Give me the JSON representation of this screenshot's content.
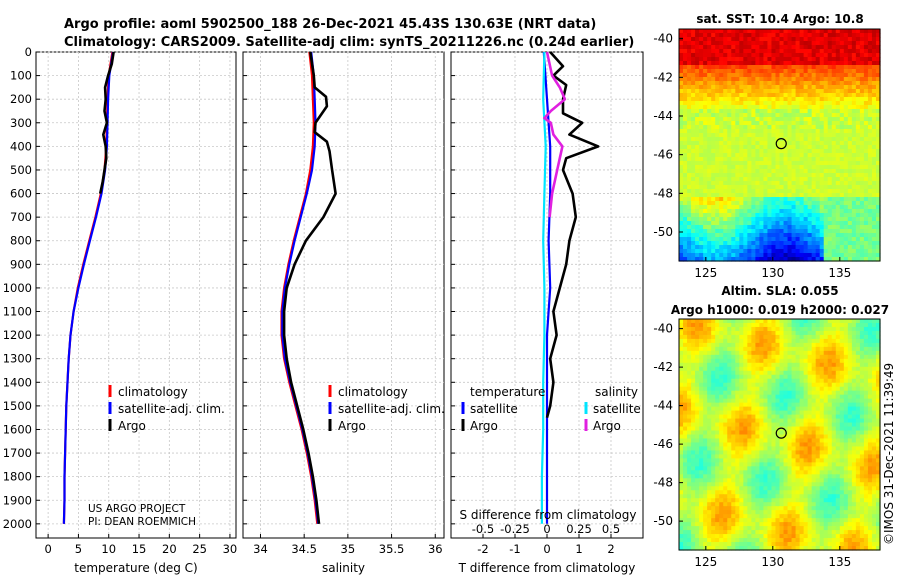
{
  "title_line1": "Argo profile: aoml 5902500_188 26-Dec-2021 45.43S 130.63E (NRT data)",
  "title_line2": "Climatology: CARS2009. Satellite-adj clim: synTS_20211226.nc (0.24d earlier)",
  "credit_line1": "US ARGO PROJECT",
  "credit_line2": "PI: DEAN ROEMMICH",
  "watermark": "©IMOS 31-Dec-2021 11:39:49",
  "colors": {
    "climatology": "#ff0000",
    "satellite": "#0000ff",
    "argo": "#000000",
    "sat_salinity": "#00e5ff",
    "argo_salinity": "#e020e0"
  },
  "chart_data": [
    {
      "type": "line",
      "title": "",
      "xlabel": "temperature (deg C)",
      "ylabel": "",
      "xlim": [
        -2,
        31
      ],
      "ylim": [
        2060,
        0
      ],
      "xticks": [
        "0",
        "5",
        "10",
        "15",
        "20",
        "25",
        "30"
      ],
      "yticks": [
        "0",
        "100",
        "200",
        "300",
        "400",
        "500",
        "600",
        "700",
        "800",
        "900",
        "1000",
        "1100",
        "1200",
        "1300",
        "1400",
        "1500",
        "1600",
        "1700",
        "1800",
        "1900",
        "2000"
      ],
      "legend": [
        "climatology",
        "satellite-adj. clim.",
        "Argo"
      ],
      "series": [
        {
          "name": "climatology",
          "depth": [
            0,
            100,
            200,
            300,
            400,
            500,
            600,
            700,
            800,
            900,
            1000,
            1100,
            1200,
            1300,
            1400,
            1500,
            1600,
            1700,
            1800,
            1900,
            2000
          ],
          "values": [
            10.6,
            10.0,
            9.8,
            9.7,
            9.6,
            9.3,
            8.7,
            7.8,
            6.8,
            5.8,
            4.9,
            4.2,
            3.7,
            3.4,
            3.2,
            3.0,
            2.9,
            2.8,
            2.7,
            2.7,
            2.6
          ]
        },
        {
          "name": "satellite-adj. clim.",
          "depth": [
            0,
            100,
            200,
            300,
            400,
            500,
            600,
            700,
            800,
            900,
            1000,
            1100,
            1200,
            1300,
            1400,
            1500,
            1600,
            1700,
            1800,
            1900,
            2000
          ],
          "values": [
            10.7,
            10.1,
            9.9,
            9.8,
            9.7,
            9.4,
            8.8,
            7.9,
            6.9,
            5.9,
            5.0,
            4.2,
            3.7,
            3.4,
            3.2,
            3.0,
            2.9,
            2.8,
            2.7,
            2.7,
            2.6
          ]
        },
        {
          "name": "Argo",
          "depth": [
            0,
            50,
            100,
            150,
            200,
            250,
            300,
            350,
            400,
            450,
            500,
            550,
            600
          ],
          "values": [
            10.8,
            10.5,
            9.9,
            9.4,
            9.5,
            9.3,
            9.7,
            9.1,
            9.5,
            9.6,
            9.3,
            9.0,
            8.6
          ]
        }
      ]
    },
    {
      "type": "line",
      "title": "",
      "xlabel": "salinity",
      "ylabel": "",
      "xlim": [
        33.8,
        36.1
      ],
      "ylim": [
        2060,
        0
      ],
      "xticks": [
        "34",
        "34.5",
        "35",
        "35.5",
        "36"
      ],
      "legend": [
        "climatology",
        "satellite-adj. clim.",
        "Argo"
      ],
      "series": [
        {
          "name": "climatology",
          "depth": [
            0,
            100,
            200,
            300,
            400,
            500,
            600,
            700,
            800,
            900,
            1000,
            1100,
            1200,
            1300,
            1400,
            1500,
            1600,
            1700,
            1800,
            1900,
            2000
          ],
          "values": [
            34.56,
            34.59,
            34.6,
            34.61,
            34.6,
            34.57,
            34.52,
            34.45,
            34.38,
            34.32,
            34.27,
            34.24,
            34.24,
            34.27,
            34.33,
            34.4,
            34.47,
            34.53,
            34.58,
            34.62,
            34.65
          ]
        },
        {
          "name": "satellite-adj. clim.",
          "depth": [
            0,
            100,
            200,
            300,
            400,
            500,
            600,
            700,
            800,
            900,
            1000,
            1100,
            1200,
            1300,
            1400,
            1500,
            1600,
            1700,
            1800,
            1900,
            2000
          ],
          "values": [
            34.58,
            34.61,
            34.62,
            34.63,
            34.62,
            34.59,
            34.53,
            34.46,
            34.39,
            34.33,
            34.28,
            34.25,
            34.25,
            34.28,
            34.34,
            34.41,
            34.48,
            34.54,
            34.59,
            34.63,
            34.66
          ]
        },
        {
          "name": "Argo",
          "depth": [
            0,
            100,
            150,
            190,
            230,
            300,
            340,
            380,
            420,
            500,
            600,
            700,
            800,
            900,
            1000,
            1100,
            1200,
            1300,
            1400,
            1500,
            1600,
            1700,
            1800,
            1900,
            2000
          ],
          "values": [
            34.57,
            34.61,
            34.62,
            34.75,
            34.76,
            34.63,
            34.62,
            34.76,
            34.79,
            34.82,
            34.86,
            34.72,
            34.52,
            34.39,
            34.3,
            34.27,
            34.27,
            34.3,
            34.35,
            34.42,
            34.49,
            34.55,
            34.6,
            34.64,
            34.67
          ]
        }
      ]
    },
    {
      "type": "line",
      "title": "",
      "xlabel": "T difference from climatology",
      "xlabel_top": "S difference from climatology",
      "xlim": [
        -3,
        3
      ],
      "ylim": [
        2060,
        0
      ],
      "xticks": [
        "-2",
        "-1",
        "0",
        "1",
        "2"
      ],
      "xticks_top": [
        "-0.5",
        "-0.25",
        "0",
        "0.25",
        "0.5"
      ],
      "legend_left_title": "temperature",
      "legend_right_title": "salinity",
      "legend": [
        "satellite",
        "Argo",
        "satellite",
        "Argo"
      ],
      "series": [
        {
          "name": "satellite",
          "depth": [
            0,
            200,
            400,
            600,
            800,
            1000,
            1200,
            1400,
            1600,
            1800,
            2000
          ],
          "values": [
            -0.1,
            0.0,
            0.1,
            0.1,
            0.05,
            0.1,
            0.0,
            0.0,
            0.0,
            0.0,
            0.0
          ]
        },
        {
          "name": "Argo",
          "depth": [
            0,
            60,
            100,
            140,
            200,
            260,
            300,
            350,
            400,
            450,
            500,
            600,
            700,
            800,
            900,
            1000,
            1100,
            1200,
            1300,
            1400,
            1500,
            1550
          ],
          "values": [
            0.1,
            0.5,
            0.2,
            0.6,
            0.5,
            0.5,
            1.1,
            0.7,
            1.6,
            0.6,
            0.5,
            0.8,
            0.9,
            0.7,
            0.6,
            0.4,
            0.2,
            0.3,
            0.1,
            0.2,
            0.1,
            0.0
          ]
        },
        {
          "name": "satellite (salinity)",
          "depth": [
            0,
            200,
            400,
            600,
            800,
            1000,
            1200,
            1400,
            1600,
            1800,
            2000
          ],
          "values": [
            -0.02,
            -0.03,
            -0.01,
            -0.02,
            -0.03,
            -0.02,
            -0.02,
            -0.03,
            -0.03,
            -0.04,
            -0.04
          ]
        },
        {
          "name": "Argo (salinity)",
          "depth": [
            0,
            100,
            150,
            200,
            250,
            280,
            300,
            350,
            400,
            500,
            600,
            700
          ],
          "values": [
            0.0,
            0.04,
            0.1,
            0.14,
            0.03,
            -0.02,
            0.03,
            0.05,
            0.12,
            0.08,
            0.04,
            0.02
          ]
        }
      ]
    },
    {
      "type": "heatmap",
      "title": "sat. SST: 10.4  Argo: 10.8",
      "xlim": [
        123,
        138
      ],
      "ylim": [
        -51.5,
        -39.5
      ],
      "xticks": [
        "125",
        "130",
        "135"
      ],
      "yticks": [
        "-40",
        "-42",
        "-44",
        "-46",
        "-48",
        "-50"
      ],
      "marker": {
        "lon": 130.63,
        "lat": -45.43
      }
    },
    {
      "type": "heatmap",
      "title": "Altim. SLA: 0.055",
      "subtitle": "Argo h1000: 0.019 h2000: 0.027",
      "xlim": [
        123,
        138
      ],
      "ylim": [
        -51.5,
        -39.5
      ],
      "xticks": [
        "125",
        "130",
        "135"
      ],
      "yticks": [
        "-40",
        "-42",
        "-44",
        "-46",
        "-48",
        "-50"
      ],
      "marker": {
        "lon": 130.63,
        "lat": -45.43
      }
    }
  ]
}
